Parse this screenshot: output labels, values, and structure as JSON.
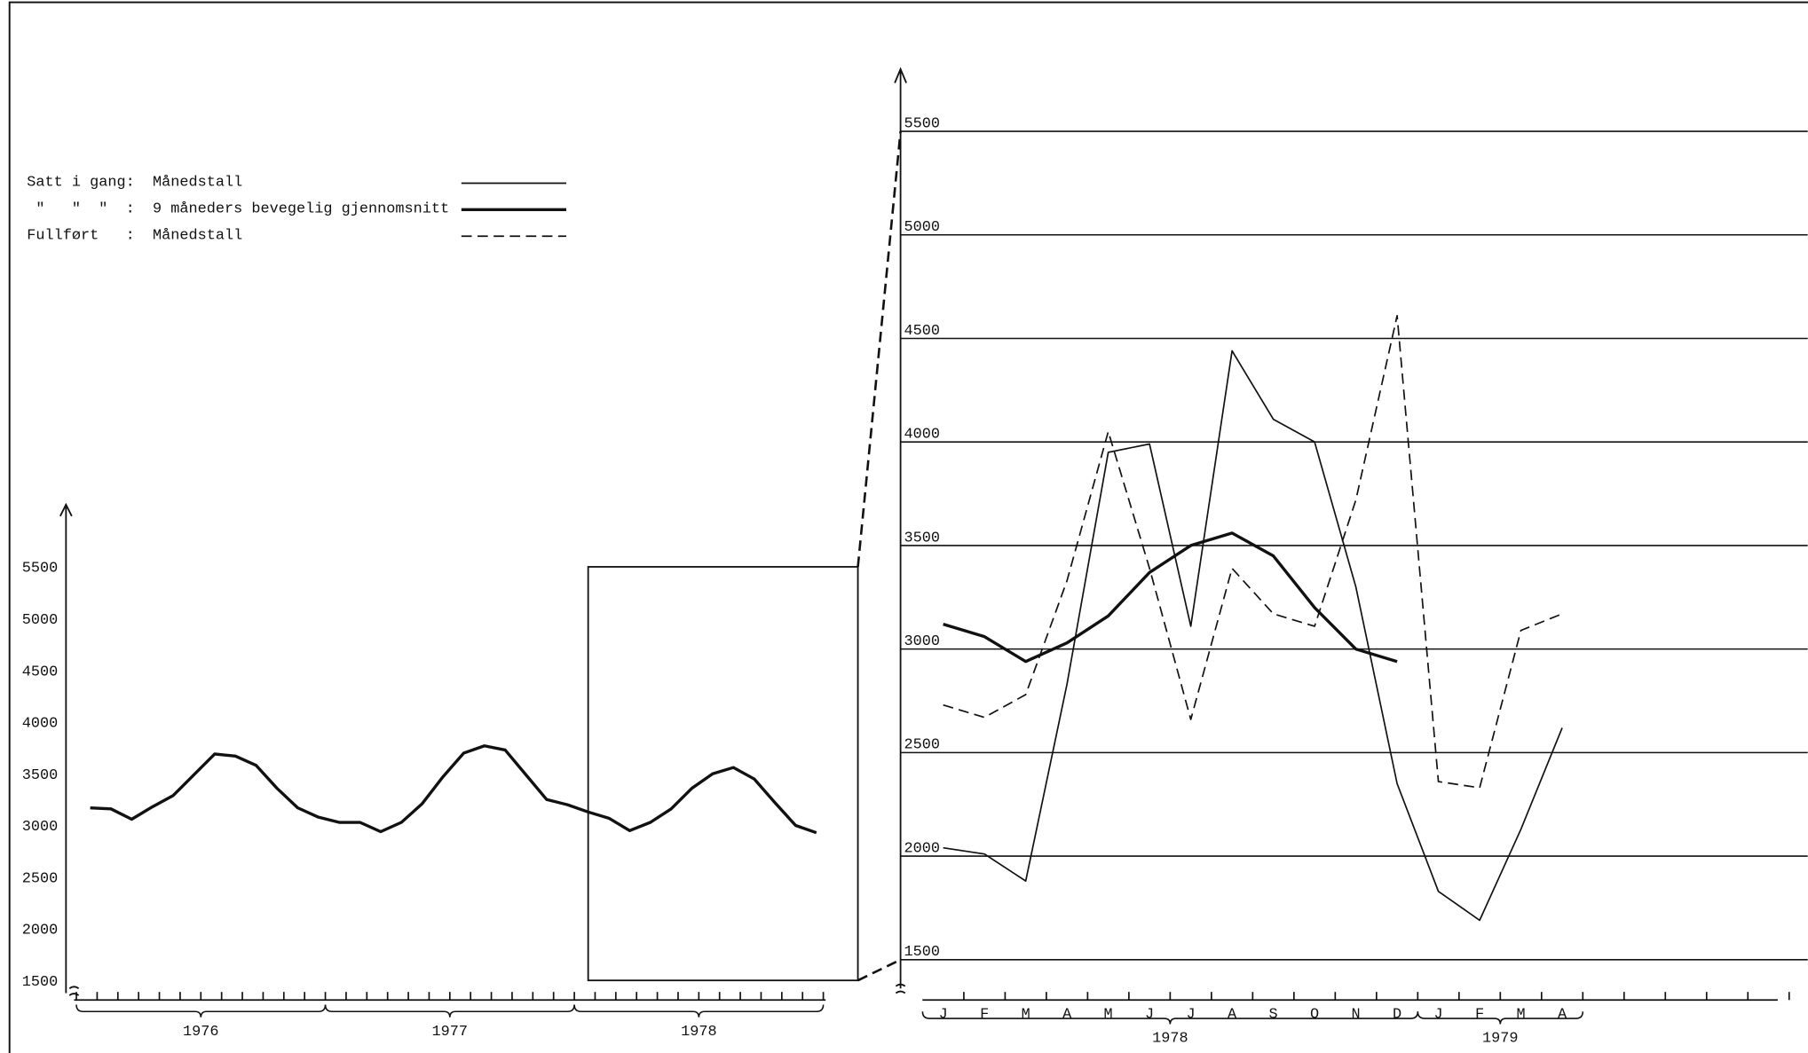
{
  "chart_data": [
    {
      "type": "line",
      "categories": [
        null,
        null,
        null,
        null,
        null,
        null,
        null,
        null,
        null,
        null,
        null,
        null,
        null,
        null,
        null,
        null,
        null,
        null,
        null,
        null,
        null,
        null,
        null,
        null,
        null,
        null,
        null,
        null,
        null,
        null,
        null,
        null,
        null,
        null,
        null,
        null
      ],
      "groups": [
        {
          "label": "1976",
          "size": 12
        },
        {
          "label": "1977",
          "size": 12
        },
        {
          "label": "1978",
          "size": 12
        }
      ],
      "values": [
        3180,
        3170,
        3070,
        3190,
        3300,
        3500,
        3700,
        3680,
        3590,
        3370,
        3180,
        3090,
        3040,
        3040,
        2950,
        3040,
        3220,
        3480,
        3710,
        3780,
        3740,
        3500,
        3260,
        3210,
        3140,
        3080,
        2960,
        3040,
        3170,
        3370,
        3510,
        3570,
        3460,
        3230,
        3010,
        2940
      ],
      "color": "#111111",
      "ylim": [
        1500,
        5500
      ],
      "yticks": [
        1500,
        2000,
        2500,
        3000,
        3500,
        4000,
        4500,
        5000,
        5500
      ]
    },
    {
      "type": "line",
      "categories": [
        "J",
        "F",
        "M",
        "A",
        "M",
        "J",
        "J",
        "A",
        "S",
        "O",
        "N",
        "D",
        "J",
        "F",
        "M",
        "A",
        null,
        null,
        null,
        null,
        null
      ],
      "groups": [
        {
          "label": "1978",
          "size": 12
        },
        {
          "label": "1979",
          "size": 4
        }
      ],
      "series": [
        {
          "name": "Satt i gang:  Månedstall",
          "color": "#111111",
          "style": "thin",
          "values": [
            2040,
            2010,
            1880,
            2830,
            3950,
            3990,
            3110,
            4440,
            4110,
            4000,
            3300,
            2350,
            1830,
            1690,
            2130,
            2620,
            null,
            null,
            null,
            null,
            null
          ]
        },
        {
          "name": " \"   \"  \"  :  9 måneders bevegelig gjennomsnitt",
          "color": "#111111",
          "style": "thick",
          "values": [
            3120,
            3060,
            2940,
            3030,
            3160,
            3370,
            3500,
            3560,
            3450,
            3200,
            3000,
            2940,
            null,
            null,
            null,
            null,
            null,
            null,
            null,
            null,
            null
          ]
        },
        {
          "name": "Fullført   :  Månedstall",
          "color": "#111111",
          "style": "dashed",
          "values": [
            2730,
            2670,
            2780,
            3330,
            4050,
            3390,
            2660,
            3390,
            3170,
            3110,
            3720,
            4610,
            2360,
            2330,
            3090,
            3170,
            null,
            null,
            null,
            null,
            null
          ]
        }
      ],
      "ylim": [
        1500,
        5500
      ],
      "yticks": [
        1500,
        2000,
        2500,
        3000,
        3500,
        4000,
        4500,
        5000,
        5500
      ],
      "grid": true
    }
  ]
}
